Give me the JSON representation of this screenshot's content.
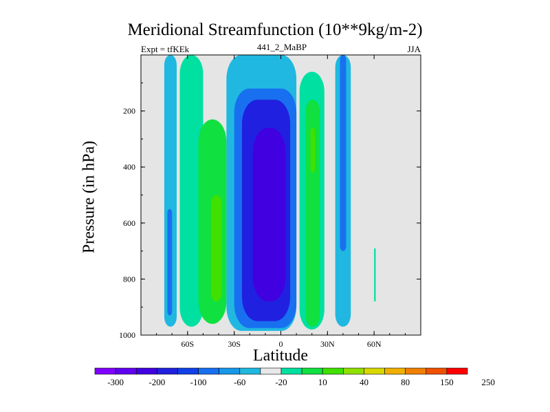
{
  "chart_data": {
    "type": "heatmap",
    "title": "Meridional Streamfunction (10**9kg/m-2)",
    "subtitle_left": "Expt = tfKEk",
    "subtitle_center": "441_2_MaBP",
    "subtitle_right": "JJA",
    "xlabel": "Latitude",
    "ylabel": "Pressure (in hPa)",
    "xlim": [
      -90,
      90
    ],
    "ylim": [
      1000,
      0
    ],
    "x_ticks": [
      -60,
      -30,
      0,
      30,
      60
    ],
    "x_tick_labels": [
      "60S",
      "30S",
      "0",
      "30N",
      "60N"
    ],
    "y_ticks": [
      200,
      400,
      600,
      800,
      1000
    ],
    "y_tick_labels": [
      "200",
      "400",
      "600",
      "800",
      "1000"
    ],
    "background_color": "#e5e5e5",
    "colorbar": {
      "colors": [
        "#8000ff",
        "#6000f0",
        "#4000e0",
        "#2020e0",
        "#1040e8",
        "#1870f0",
        "#1898e8",
        "#20b8e0",
        "#e8e8e8",
        "#00e0a0",
        "#10e040",
        "#40e000",
        "#90e000",
        "#d8d800",
        "#f0b000",
        "#f08000",
        "#f05000",
        "#ff0000"
      ],
      "labels": [
        "-300",
        "-200",
        "-100",
        "-60",
        "-20",
        "10",
        "40",
        "80",
        "150",
        "250"
      ]
    },
    "contour_cells": [
      {
        "level": -20,
        "lat": [
          -75,
          -67
        ],
        "p": [
          0,
          970
        ]
      },
      {
        "level": -60,
        "lat": [
          -73,
          -70
        ],
        "p": [
          550,
          930
        ]
      },
      {
        "level": 10,
        "lat": [
          -65,
          -50
        ],
        "p": [
          0,
          970
        ]
      },
      {
        "level": 40,
        "lat": [
          -53,
          -35
        ],
        "p": [
          230,
          960
        ]
      },
      {
        "level": 80,
        "lat": [
          -45,
          -38
        ],
        "p": [
          500,
          880
        ]
      },
      {
        "level": -20,
        "lat": [
          -35,
          10
        ],
        "p": [
          0,
          985
        ]
      },
      {
        "level": -60,
        "lat": [
          -30,
          10
        ],
        "p": [
          120,
          975
        ]
      },
      {
        "level": -100,
        "lat": [
          -25,
          6
        ],
        "p": [
          160,
          950
        ]
      },
      {
        "level": -200,
        "lat": [
          -18,
          3
        ],
        "p": [
          260,
          880
        ]
      },
      {
        "level": 10,
        "lat": [
          12,
          28
        ],
        "p": [
          60,
          980
        ]
      },
      {
        "level": 40,
        "lat": [
          16,
          25
        ],
        "p": [
          160,
          970
        ]
      },
      {
        "level": 80,
        "lat": [
          19,
          22
        ],
        "p": [
          260,
          420
        ]
      },
      {
        "level": -20,
        "lat": [
          35,
          45
        ],
        "p": [
          0,
          970
        ]
      },
      {
        "level": -60,
        "lat": [
          38,
          42
        ],
        "p": [
          0,
          700
        ]
      },
      {
        "level": 10,
        "lat": [
          60,
          61
        ],
        "p": [
          690,
          880
        ]
      }
    ]
  }
}
